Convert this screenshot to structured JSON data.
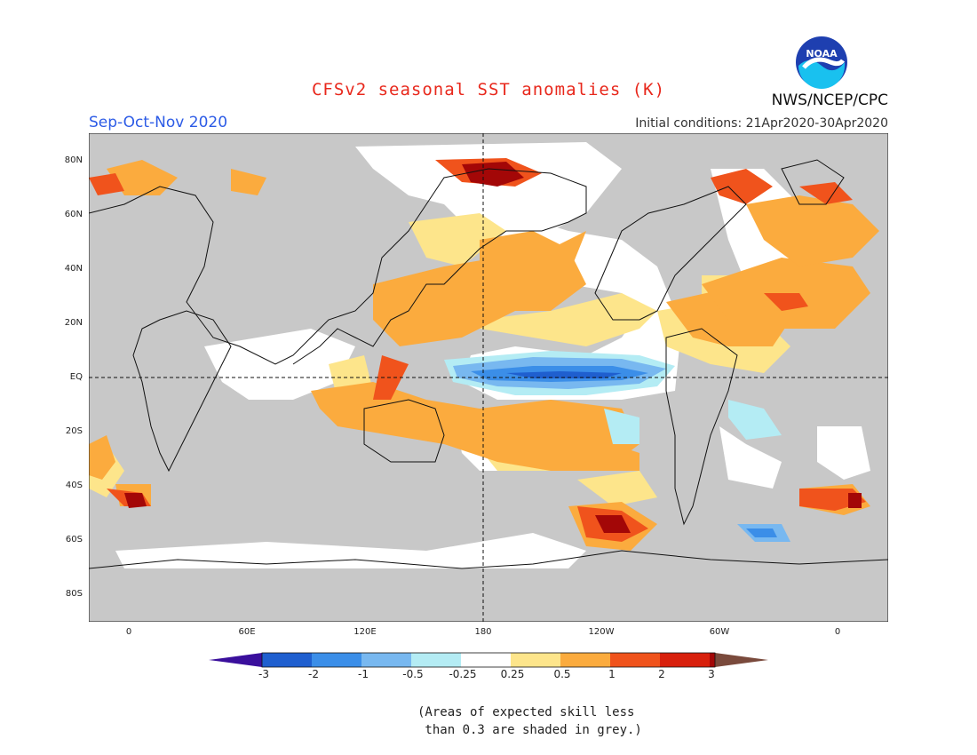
{
  "title": "CFSv2 seasonal SST anomalies (K)",
  "season": "Sep-Oct-Nov 2020",
  "agency": "NWS/NCEP/CPC",
  "logo_text": "NOAA",
  "initial_conditions": "Initial conditions: 21Apr2020-30Apr2020",
  "lat_labels": [
    "80N",
    "60N",
    "40N",
    "20N",
    "EQ",
    "20S",
    "40S",
    "60S",
    "80S"
  ],
  "lon_labels": [
    "0",
    "60E",
    "120E",
    "180",
    "120W",
    "60W",
    "0"
  ],
  "colorbar": {
    "labels": [
      "-3",
      "-2",
      "-1",
      "-0.5",
      "-0.25",
      "0.25",
      "0.5",
      "1",
      "2",
      "3"
    ],
    "colors": [
      "#3a0f9c",
      "#1f5fcf",
      "#3b8ee8",
      "#78b8f0",
      "#b4ecf4",
      "#ffffff",
      "#fde58b",
      "#fbab3e",
      "#f0531c",
      "#d8200c",
      "#a30707",
      "#7a4a3c"
    ]
  },
  "skill_note": "(Areas of expected skill less\n than 0.3 are shaded in grey.)",
  "colors": {
    "land": "#c8c8c8",
    "ocean_grey": "#c8c8c8",
    "title": "#e8281c",
    "season": "#2c5be6"
  }
}
